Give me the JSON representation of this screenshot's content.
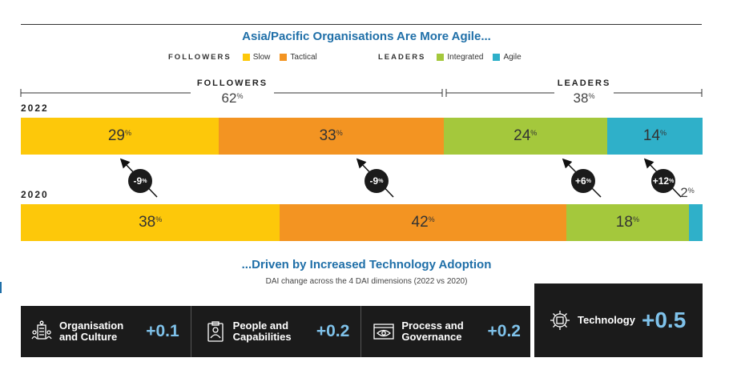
{
  "titles": {
    "main": "Asia/Pacific Organisations Are More Agile...",
    "secondary": "...Driven by Increased Technology Adoption",
    "secondary_subtitle": "DAI change across the 4 DAI dimensions (2022 vs 2020)"
  },
  "legend": {
    "followers_label": "FOLLOWERS",
    "leaders_label": "LEADERS",
    "items": [
      {
        "label": "Slow",
        "color": "#fdc80a"
      },
      {
        "label": "Tactical",
        "color": "#f39422"
      },
      {
        "label": "Integrated",
        "color": "#a4c83c"
      },
      {
        "label": "Agile",
        "color": "#2fb0c9"
      }
    ]
  },
  "group_totals": {
    "followers": {
      "label": "FOLLOWERS",
      "value": "62",
      "unit": "%"
    },
    "leaders": {
      "label": "LEADERS",
      "value": "38",
      "unit": "%"
    }
  },
  "chart_data": {
    "type": "bar",
    "stacked": true,
    "orientation": "horizontal",
    "categories": [
      "2022",
      "2020"
    ],
    "unit": "%",
    "series": [
      {
        "name": "Slow",
        "values": [
          29,
          38
        ],
        "color": "#fdc80a"
      },
      {
        "name": "Tactical",
        "values": [
          33,
          42
        ],
        "color": "#f39422"
      },
      {
        "name": "Integrated",
        "values": [
          24,
          18
        ],
        "color": "#a4c83c"
      },
      {
        "name": "Agile",
        "values": [
          14,
          2
        ],
        "color": "#2fb0c9"
      }
    ],
    "changes": [
      {
        "series": "Slow",
        "label": "-9",
        "direction": "up"
      },
      {
        "series": "Tactical",
        "label": "-9",
        "direction": "up"
      },
      {
        "series": "Integrated",
        "label": "+6",
        "direction": "up"
      },
      {
        "series": "Agile",
        "label": "+12",
        "direction": "up"
      }
    ],
    "xlim": [
      0,
      100
    ]
  },
  "dimensions": [
    {
      "label_line1": "Organisation",
      "label_line2": "and Culture",
      "value": "+0.1",
      "icon": "building-people-icon"
    },
    {
      "label_line1": "People and",
      "label_line2": "Capabilities",
      "value": "+0.2",
      "icon": "clipboard-person-icon"
    },
    {
      "label_line1": "Process and",
      "label_line2": "Governance",
      "value": "+0.2",
      "icon": "eye-monitor-icon"
    },
    {
      "label_line1": "Technology",
      "label_line2": "",
      "value": "+0.5",
      "icon": "gear-chip-icon"
    }
  ]
}
